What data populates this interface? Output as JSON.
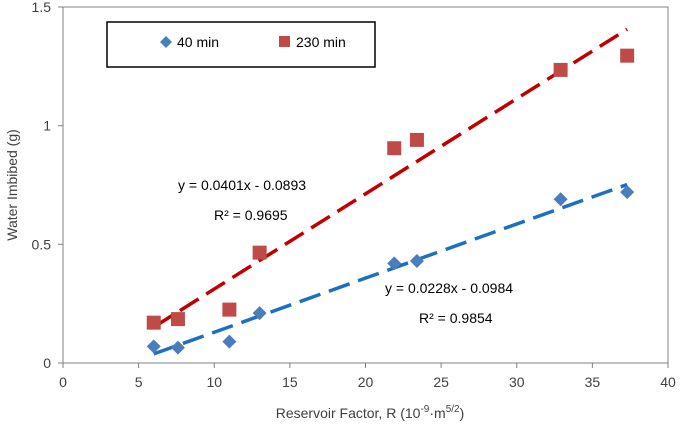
{
  "chart_data": {
    "type": "scatter",
    "title": "",
    "xlabel": "Reservoir Factor, R (10",
    "xlabel_sup1": "-9",
    "xlabel_mid": "·m",
    "xlabel_sup2": "5/2",
    "xlabel_end": ")",
    "ylabel": "Water Imbibed (g)",
    "xlim": [
      0,
      40
    ],
    "ylim": [
      0,
      1.5
    ],
    "xticks": [
      0,
      5,
      10,
      15,
      20,
      25,
      30,
      35,
      40
    ],
    "xtick_labels": [
      "0",
      "5",
      "10",
      "15",
      "20",
      "25",
      "30",
      "35",
      "40"
    ],
    "yticks": [
      0,
      0.5,
      1,
      1.5
    ],
    "ytick_labels": [
      "0",
      "0.5",
      "1",
      "1.5"
    ],
    "legend_position": "top-left",
    "series": [
      {
        "name": "40 min",
        "marker": "diamond",
        "color": "#4a7ebb",
        "x": [
          6.0,
          7.6,
          11.0,
          13.0,
          21.9,
          23.4,
          32.9,
          37.3
        ],
        "y": [
          0.07,
          0.065,
          0.09,
          0.21,
          0.42,
          0.43,
          0.69,
          0.72
        ],
        "trendline": {
          "slope": 0.0228,
          "intercept": -0.0984,
          "x_range": [
            6.0,
            37.3
          ],
          "color": "#1f6fbf",
          "equation": "y = 0.0228x - 0.0984",
          "r2": "R² = 0.9854"
        }
      },
      {
        "name": "230 min",
        "marker": "square",
        "color": "#be4b48",
        "x": [
          6.0,
          7.6,
          11.0,
          13.0,
          21.9,
          23.4,
          32.9,
          37.3
        ],
        "y": [
          0.17,
          0.185,
          0.225,
          0.465,
          0.905,
          0.94,
          1.235,
          1.295
        ],
        "trendline": {
          "slope": 0.0401,
          "intercept": -0.0893,
          "x_range": [
            6.0,
            37.3
          ],
          "color": "#c00000",
          "equation": "y = 0.0401x - 0.0893",
          "r2": "R² = 0.9695"
        }
      }
    ]
  }
}
